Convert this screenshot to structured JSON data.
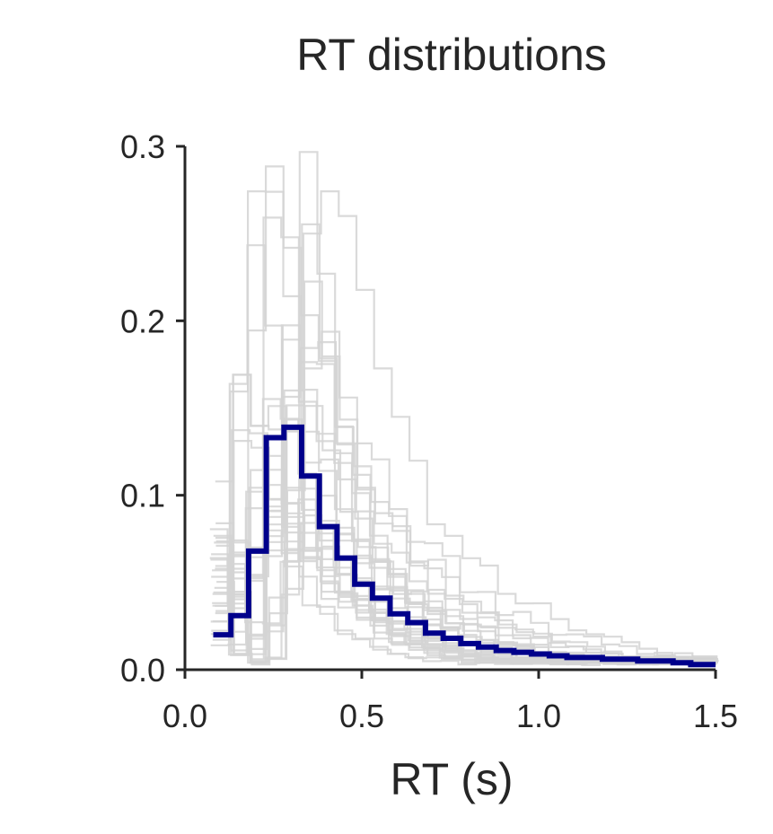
{
  "chart_data": {
    "type": "line",
    "title": "RT distributions",
    "xlabel": "RT (s)",
    "ylabel": "",
    "xlim": [
      0.0,
      1.5
    ],
    "ylim": [
      0.0,
      0.3
    ],
    "xticks": [
      "0.0",
      "0.5",
      "1.0",
      "1.5"
    ],
    "yticks": [
      "0.0",
      "0.1",
      "0.2",
      "0.3"
    ],
    "grid": false,
    "legend": "none",
    "mean_series": {
      "color": "#00008b",
      "style": "step",
      "bin_edges": [
        0.08,
        0.13,
        0.18,
        0.23,
        0.28,
        0.33,
        0.38,
        0.43,
        0.48,
        0.53,
        0.58,
        0.63,
        0.68,
        0.73,
        0.78,
        0.83,
        0.88,
        0.93,
        0.98,
        1.03,
        1.08,
        1.13,
        1.18,
        1.23,
        1.28,
        1.33,
        1.38,
        1.43,
        1.5
      ],
      "values": [
        0.02,
        0.031,
        0.068,
        0.133,
        0.139,
        0.111,
        0.082,
        0.064,
        0.049,
        0.041,
        0.032,
        0.027,
        0.021,
        0.018,
        0.015,
        0.013,
        0.011,
        0.01,
        0.009,
        0.008,
        0.007,
        0.007,
        0.006,
        0.006,
        0.005,
        0.005,
        0.004,
        0.003
      ]
    },
    "individual_series": {
      "color": "#d3d3d3",
      "style": "step",
      "count": 30,
      "peak_range": [
        0.09,
        0.316
      ],
      "peak_x_range": [
        0.18,
        0.4
      ]
    }
  }
}
